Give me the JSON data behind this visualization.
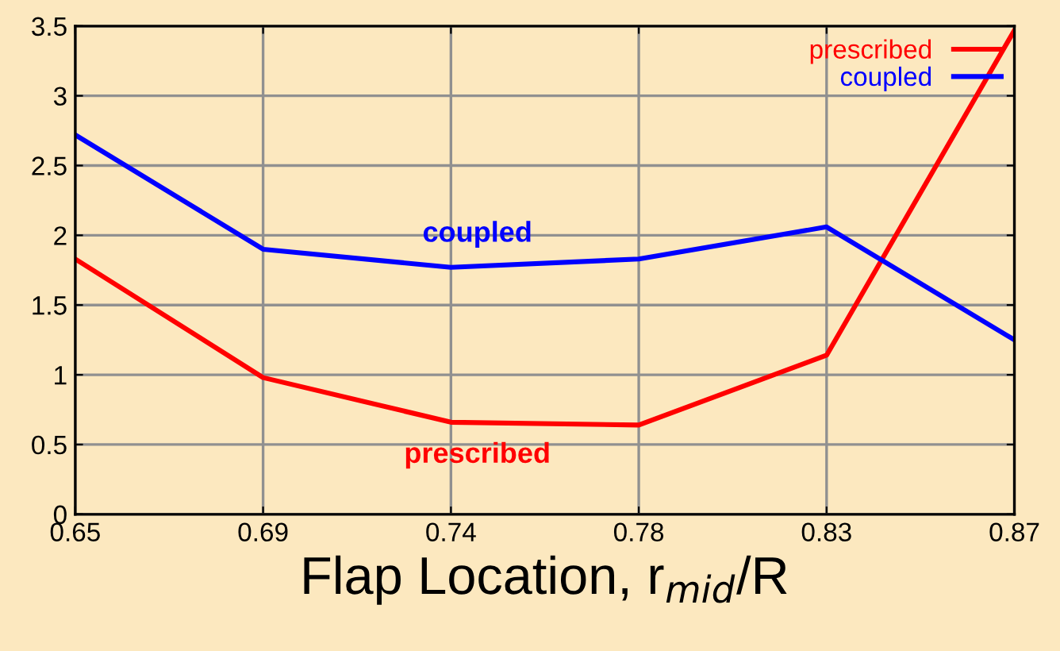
{
  "chart_data": {
    "type": "line",
    "xlabel": "Flap Location, r$_{mid}$/R",
    "categories": [
      "0.65",
      "0.69",
      "0.74",
      "0.78",
      "0.83",
      "0.87"
    ],
    "series": [
      {
        "name": "prescribed",
        "color": "#ff0000",
        "values": [
          1.83,
          0.98,
          0.66,
          0.64,
          1.14,
          3.47
        ]
      },
      {
        "name": "coupled",
        "color": "#0000ff",
        "values": [
          2.72,
          1.9,
          1.77,
          1.83,
          2.06,
          1.25
        ]
      }
    ],
    "ylim": [
      0,
      3.5
    ],
    "yticks": [
      0,
      0.5,
      1,
      1.5,
      2,
      2.5,
      3,
      3.5
    ],
    "annotations": [
      "prescribed",
      "coupled"
    ],
    "grid": true,
    "legend": "top right",
    "marker": "none",
    "line_style": "solid"
  }
}
